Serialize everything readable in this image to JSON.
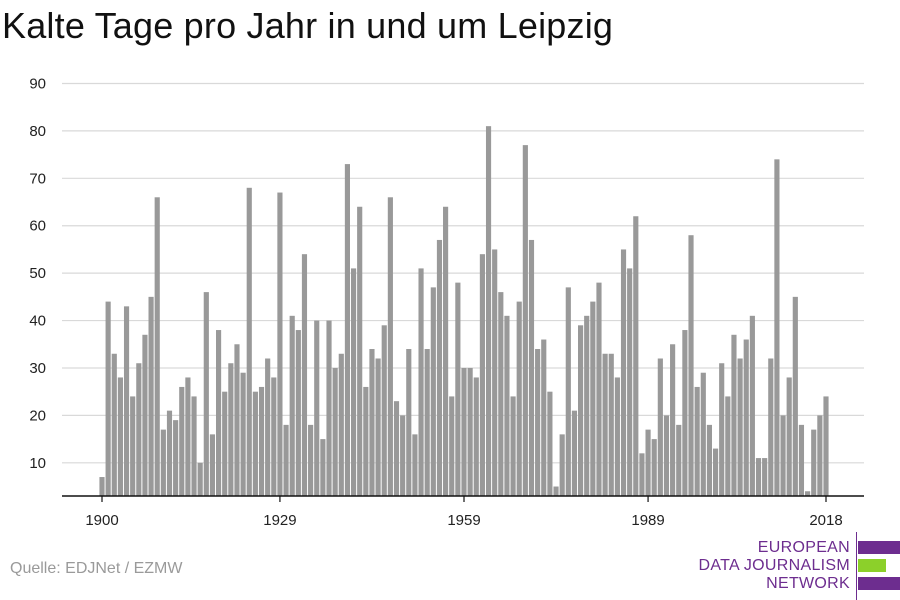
{
  "title": "Kalte Tage pro Jahr in und um Leipzig",
  "source": "Quelle: EDJNet / EZMW",
  "logo": {
    "lines": [
      "EUROPEAN",
      "DATA JOURNALISM",
      "NETWORK"
    ],
    "colors": {
      "purple": "#6d2d8f",
      "green": "#8cd02a"
    }
  },
  "colors": {
    "bar": "#999999",
    "grid": "#d9d9d9",
    "axis": "#111111"
  },
  "chart_data": {
    "type": "bar",
    "title": "Kalte Tage pro Jahr in und um Leipzig",
    "xlabel": "",
    "ylabel": "",
    "x_tick_labels": [
      "1900",
      "1929",
      "1959",
      "1989",
      "2018"
    ],
    "y_ticks": [
      10,
      20,
      30,
      40,
      50,
      60,
      70,
      80,
      90
    ],
    "ylim": [
      3,
      92
    ],
    "xlim": [
      1900,
      2018
    ],
    "grid": true,
    "legend": "none",
    "years": [
      1900,
      1901,
      1902,
      1903,
      1904,
      1905,
      1906,
      1907,
      1908,
      1909,
      1910,
      1911,
      1912,
      1913,
      1914,
      1915,
      1916,
      1917,
      1918,
      1919,
      1920,
      1921,
      1922,
      1923,
      1924,
      1925,
      1926,
      1927,
      1928,
      1929,
      1930,
      1931,
      1932,
      1933,
      1934,
      1935,
      1936,
      1937,
      1938,
      1939,
      1940,
      1941,
      1942,
      1943,
      1944,
      1945,
      1946,
      1947,
      1948,
      1949,
      1950,
      1951,
      1952,
      1953,
      1954,
      1955,
      1956,
      1957,
      1958,
      1959,
      1960,
      1961,
      1962,
      1963,
      1964,
      1965,
      1966,
      1967,
      1968,
      1969,
      1970,
      1971,
      1972,
      1973,
      1974,
      1975,
      1976,
      1977,
      1978,
      1979,
      1980,
      1981,
      1982,
      1983,
      1984,
      1985,
      1986,
      1987,
      1988,
      1989,
      1990,
      1991,
      1992,
      1993,
      1994,
      1995,
      1996,
      1997,
      1998,
      1999,
      2000,
      2001,
      2002,
      2003,
      2004,
      2005,
      2006,
      2007,
      2008,
      2009,
      2010,
      2011,
      2012,
      2013,
      2014,
      2015,
      2016,
      2017,
      2018
    ],
    "values": [
      7,
      44,
      33,
      28,
      43,
      24,
      31,
      37,
      45,
      66,
      17,
      21,
      19,
      26,
      28,
      24,
      10,
      46,
      16,
      38,
      25,
      31,
      35,
      29,
      68,
      25,
      26,
      32,
      28,
      67,
      18,
      41,
      38,
      54,
      18,
      40,
      15,
      40,
      30,
      33,
      73,
      51,
      64,
      26,
      34,
      32,
      39,
      66,
      23,
      20,
      34,
      16,
      51,
      34,
      47,
      57,
      64,
      24,
      48,
      30,
      30,
      28,
      54,
      81,
      55,
      46,
      41,
      24,
      44,
      77,
      57,
      34,
      36,
      25,
      5,
      16,
      47,
      21,
      39,
      41,
      44,
      48,
      33,
      33,
      28,
      55,
      51,
      62,
      12,
      17,
      15,
      32,
      20,
      35,
      18,
      38,
      58,
      26,
      29,
      18,
      13,
      31,
      24,
      37,
      32,
      36,
      41,
      11,
      11,
      32,
      74,
      20,
      28,
      45,
      18,
      4,
      17,
      20,
      24
    ]
  }
}
